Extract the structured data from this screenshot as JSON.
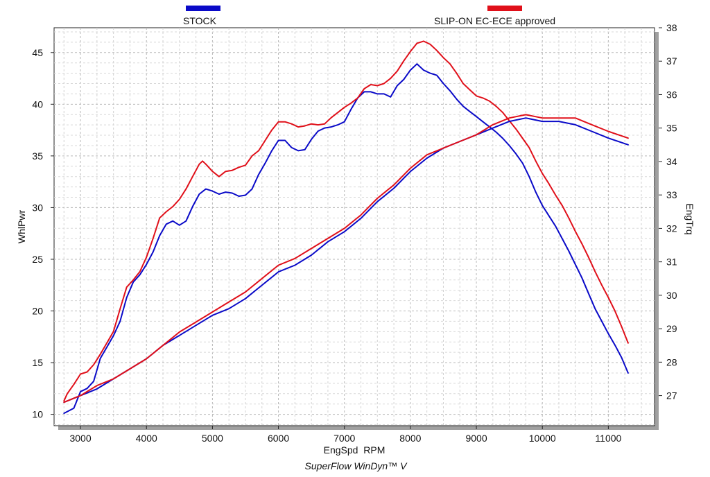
{
  "chart_data": {
    "type": "line",
    "footer": "SuperFlow WinDyn™ V",
    "xlabel": "EngSpd  RPM",
    "ylabel_left": "WhlPwr",
    "ylabel_right": "EngTrq",
    "xlim": [
      2600,
      11700
    ],
    "ylim_left": [
      8.9,
      47.4
    ],
    "ylim_right": [
      26.1,
      38.0
    ],
    "x_ticks": [
      "3000",
      "4000",
      "5000",
      "6000",
      "7000",
      "8000",
      "9000",
      "10000",
      "11000"
    ],
    "y_left_ticks": [
      "10",
      "15",
      "20",
      "25",
      "30",
      "35",
      "40",
      "45"
    ],
    "y_right_ticks": [
      "27",
      "28",
      "29",
      "30",
      "31",
      "32",
      "33",
      "34",
      "35",
      "36",
      "37",
      "38"
    ],
    "legend": [
      {
        "name": "STOCK",
        "color": "#0a0ac8"
      },
      {
        "name": "SLIP-ON EC-ECE approved",
        "color": "#e0101a"
      }
    ],
    "grid": true,
    "series": [
      {
        "name": "STOCK power",
        "axis": "left",
        "color": "#0a0ac8",
        "x": [
          2750,
          2900,
          3000,
          3100,
          3200,
          3300,
          3400,
          3500,
          3600,
          3700,
          3800,
          3900,
          4000,
          4100,
          4200,
          4300,
          4400,
          4500,
          4600,
          4700,
          4800,
          4900,
          5000,
          5100,
          5200,
          5300,
          5400,
          5500,
          5600,
          5700,
          5800,
          5900,
          6000,
          6100,
          6200,
          6300,
          6400,
          6500,
          6600,
          6700,
          6800,
          6900,
          7000,
          7100,
          7200,
          7300,
          7400,
          7500,
          7600,
          7700,
          7800,
          7900,
          8000,
          8100,
          8200,
          8300,
          8400,
          8500,
          8600,
          8700,
          8800,
          8900,
          9000,
          9100,
          9200,
          9300,
          9400,
          9500,
          9600,
          9700,
          9800,
          9900,
          10000,
          10100,
          10200,
          10300,
          10400,
          10500,
          10600,
          10700,
          10800,
          10900,
          11000,
          11100,
          11200,
          11300
        ],
        "values": [
          10.1,
          10.6,
          12.2,
          12.5,
          13.2,
          15.4,
          16.5,
          17.6,
          19.0,
          21.3,
          22.8,
          23.5,
          24.5,
          25.7,
          27.3,
          28.4,
          28.7,
          28.3,
          28.7,
          30.1,
          31.3,
          31.8,
          31.6,
          31.3,
          31.5,
          31.4,
          31.1,
          31.2,
          31.8,
          33.2,
          34.3,
          35.5,
          36.5,
          36.5,
          35.8,
          35.5,
          35.6,
          36.6,
          37.4,
          37.7,
          37.8,
          38.0,
          38.3,
          39.5,
          40.6,
          41.2,
          41.2,
          41.0,
          41.0,
          40.7,
          41.8,
          42.4,
          43.3,
          43.9,
          43.3,
          43.0,
          42.8,
          42.0,
          41.3,
          40.5,
          39.8,
          39.3,
          38.8,
          38.3,
          37.8,
          37.3,
          36.7,
          36.0,
          35.2,
          34.3,
          33.0,
          31.5,
          30.2,
          29.2,
          28.2,
          27.0,
          25.8,
          24.5,
          23.2,
          21.7,
          20.2,
          19.0,
          17.8,
          16.7,
          15.5,
          14.0
        ]
      },
      {
        "name": "SLIP-ON power",
        "axis": "left",
        "color": "#e0101a",
        "x": [
          2750,
          2800,
          2900,
          3000,
          3100,
          3200,
          3300,
          3400,
          3500,
          3600,
          3700,
          3800,
          3900,
          4000,
          4100,
          4200,
          4300,
          4400,
          4500,
          4600,
          4700,
          4800,
          4850,
          4900,
          5000,
          5100,
          5200,
          5300,
          5400,
          5500,
          5600,
          5700,
          5800,
          5900,
          6000,
          6100,
          6200,
          6300,
          6400,
          6500,
          6600,
          6700,
          6800,
          6900,
          7000,
          7100,
          7200,
          7300,
          7400,
          7500,
          7600,
          7700,
          7800,
          7900,
          8000,
          8100,
          8200,
          8300,
          8400,
          8500,
          8600,
          8700,
          8800,
          8900,
          9000,
          9100,
          9200,
          9300,
          9400,
          9500,
          9600,
          9700,
          9800,
          9900,
          10000,
          10100,
          10200,
          10300,
          10400,
          10500,
          10600,
          10700,
          10800,
          10900,
          11000,
          11100,
          11200,
          11300
        ],
        "values": [
          11.3,
          12.0,
          12.9,
          13.9,
          14.1,
          14.8,
          15.8,
          16.9,
          18.0,
          20.2,
          22.3,
          23.0,
          23.8,
          25.2,
          27.0,
          29.0,
          29.6,
          30.1,
          30.8,
          31.8,
          33.0,
          34.2,
          34.5,
          34.2,
          33.5,
          33.0,
          33.5,
          33.6,
          33.9,
          34.1,
          35.0,
          35.5,
          36.5,
          37.5,
          38.3,
          38.3,
          38.1,
          37.8,
          37.9,
          38.1,
          38.0,
          38.1,
          38.7,
          39.2,
          39.7,
          40.1,
          40.6,
          41.5,
          41.9,
          41.8,
          42.0,
          42.5,
          43.2,
          44.2,
          45.1,
          45.9,
          46.1,
          45.8,
          45.2,
          44.5,
          43.9,
          43.0,
          42.0,
          41.4,
          40.8,
          40.6,
          40.3,
          39.8,
          39.2,
          38.4,
          37.6,
          36.7,
          35.8,
          34.5,
          33.3,
          32.3,
          31.2,
          30.2,
          29.0,
          27.7,
          26.5,
          25.2,
          23.8,
          22.5,
          21.3,
          20.0,
          18.5,
          16.9
        ]
      },
      {
        "name": "STOCK torque",
        "axis": "right",
        "color": "#0a0ac8",
        "x": [
          2750,
          3000,
          3250,
          3500,
          3750,
          4000,
          4250,
          4500,
          4750,
          5000,
          5250,
          5500,
          5750,
          6000,
          6250,
          6500,
          6750,
          7000,
          7250,
          7500,
          7750,
          8000,
          8250,
          8500,
          8750,
          9000,
          9250,
          9500,
          9750,
          10000,
          10250,
          10500,
          10750,
          11000,
          11300
        ],
        "values": [
          26.8,
          27.0,
          27.2,
          27.5,
          27.8,
          28.1,
          28.5,
          28.8,
          29.1,
          29.4,
          29.6,
          29.9,
          30.3,
          30.7,
          30.9,
          31.2,
          31.6,
          31.9,
          32.3,
          32.8,
          33.2,
          33.7,
          34.1,
          34.4,
          34.6,
          34.8,
          35.0,
          35.2,
          35.3,
          35.2,
          35.2,
          35.1,
          34.9,
          34.7,
          34.5
        ]
      },
      {
        "name": "SLIP-ON torque",
        "axis": "right",
        "color": "#e0101a",
        "x": [
          2750,
          3000,
          3250,
          3500,
          3750,
          4000,
          4250,
          4500,
          4750,
          5000,
          5250,
          5500,
          5750,
          6000,
          6250,
          6500,
          6750,
          7000,
          7250,
          7500,
          7750,
          8000,
          8250,
          8500,
          8750,
          9000,
          9250,
          9500,
          9750,
          10000,
          10250,
          10500,
          10750,
          11000,
          11300
        ],
        "values": [
          26.8,
          27.0,
          27.3,
          27.5,
          27.8,
          28.1,
          28.5,
          28.9,
          29.2,
          29.5,
          29.8,
          30.1,
          30.5,
          30.9,
          31.1,
          31.4,
          31.7,
          32.0,
          32.4,
          32.9,
          33.3,
          33.8,
          34.2,
          34.4,
          34.6,
          34.8,
          35.1,
          35.3,
          35.4,
          35.3,
          35.3,
          35.3,
          35.1,
          34.9,
          34.7
        ]
      }
    ]
  }
}
